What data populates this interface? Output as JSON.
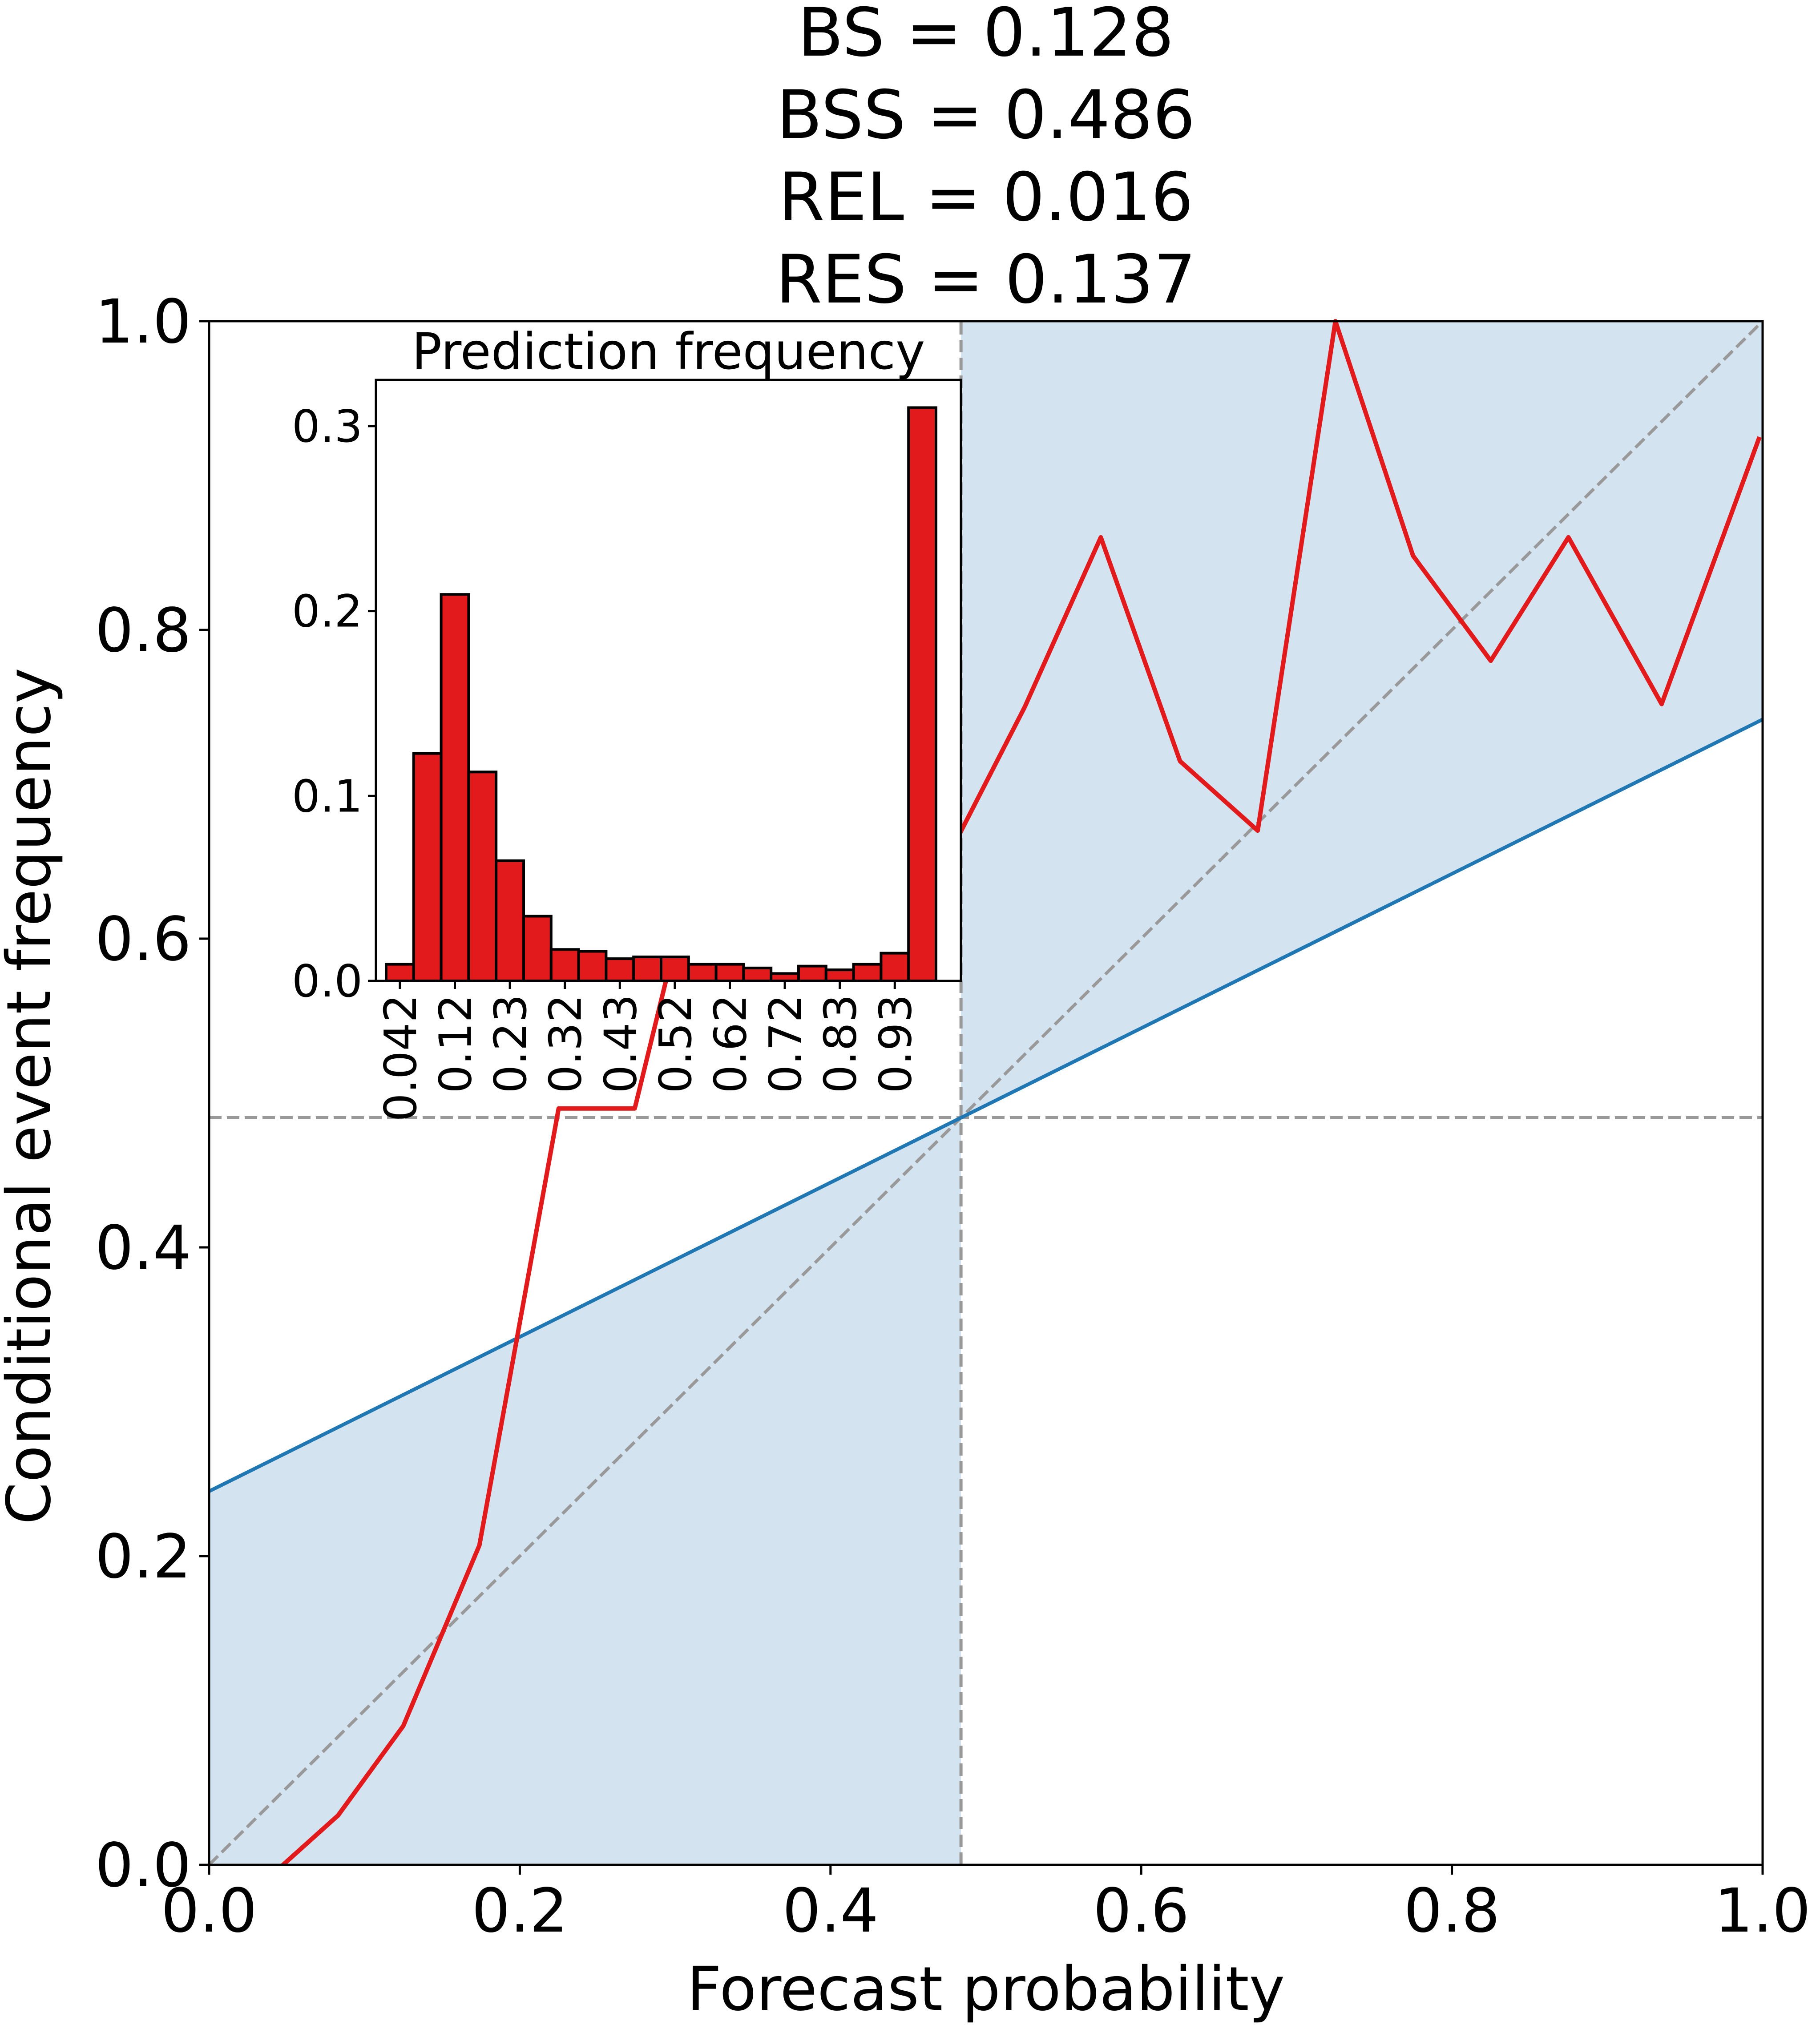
{
  "chart_data": {
    "type": "line",
    "title_lines": [
      "BS = 0.128",
      "BSS = 0.486",
      "REL = 0.016",
      "RES = 0.137"
    ],
    "xlabel": "Forecast probability",
    "ylabel": "Conditional event frequency",
    "xlim": [
      0,
      1
    ],
    "ylim": [
      0,
      1
    ],
    "x_ticks": [
      "0.0",
      "0.2",
      "0.4",
      "0.6",
      "0.8",
      "1.0"
    ],
    "y_ticks": [
      "0.0",
      "0.2",
      "0.4",
      "0.6",
      "0.8",
      "1.0"
    ],
    "climatology": 0.484,
    "no_skill_line": {
      "intercept": 0.242,
      "slope": 0.5
    },
    "skill_region_color": "#d3e3f0",
    "no_skill_color": "#1f77b4",
    "reliability_color": "#e31a1c",
    "reference_color": "#999999",
    "reliability": {
      "x": [
        0.042,
        0.083,
        0.125,
        0.174,
        0.225,
        0.274,
        0.325,
        0.375,
        0.425,
        0.474,
        0.525,
        0.574,
        0.625,
        0.675,
        0.725,
        0.775,
        0.825,
        0.875,
        0.935,
        0.998
      ],
      "y": [
        -0.005,
        0.032,
        0.09,
        0.207,
        0.49,
        0.49,
        0.7,
        0.65,
        0.6,
        0.65,
        0.75,
        0.86,
        0.715,
        0.67,
        1.0,
        0.848,
        0.78,
        0.86,
        0.752,
        0.925
      ]
    },
    "inset": {
      "type": "bar",
      "title": "Prediction frequency",
      "categories": [
        "0.042",
        "0.12",
        "0.23",
        "0.32",
        "0.43",
        "0.52",
        "0.62",
        "0.72",
        "0.83",
        "0.93"
      ],
      "y_ticks": [
        "0.0",
        "0.1",
        "0.2",
        "0.3"
      ],
      "ylim": [
        0,
        0.325
      ],
      "bin_width": 0.05,
      "bin_centers": [
        0.025,
        0.075,
        0.125,
        0.175,
        0.225,
        0.275,
        0.325,
        0.375,
        0.425,
        0.475,
        0.525,
        0.575,
        0.625,
        0.675,
        0.725,
        0.775,
        0.825,
        0.875,
        0.925,
        0.975
      ],
      "values": [
        0.009,
        0.123,
        0.209,
        0.113,
        0.065,
        0.035,
        0.017,
        0.016,
        0.012,
        0.013,
        0.013,
        0.009,
        0.009,
        0.007,
        0.004,
        0.008,
        0.006,
        0.009,
        0.015,
        0.31
      ],
      "bar_color": "#e31a1c"
    }
  }
}
